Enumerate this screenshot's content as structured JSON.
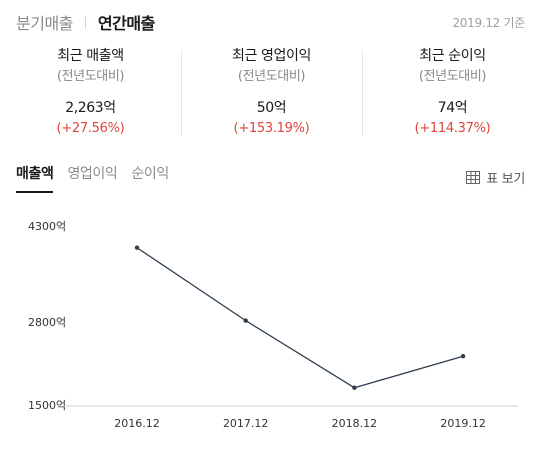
{
  "header": {
    "tabs": [
      {
        "label": "분기매출",
        "active": false
      },
      {
        "label": "연간매출",
        "active": true
      }
    ],
    "as_of": "2019.12 기준"
  },
  "metrics": [
    {
      "label": "최근 매출액",
      "sub": "(전년도대비)",
      "value": "2,263억",
      "change": "(+27.56%)"
    },
    {
      "label": "최근 영업이익",
      "sub": "(전년도대비)",
      "value": "50억",
      "change": "(+153.19%)"
    },
    {
      "label": "최근 순이익",
      "sub": "(전년도대비)",
      "value": "74억",
      "change": "(+114.37%)"
    }
  ],
  "chart_tabs": [
    {
      "label": "매출액",
      "active": true
    },
    {
      "label": "영업이익",
      "active": false
    },
    {
      "label": "순이익",
      "active": false
    }
  ],
  "table_view": {
    "label": "표 보기",
    "icon": "table-grid-icon"
  },
  "colors": {
    "accent_red": "#e0443e",
    "line": "#2f3e4e"
  },
  "chart_data": {
    "type": "line",
    "title": "",
    "xlabel": "",
    "ylabel": "",
    "categories": [
      "2016.12",
      "2017.12",
      "2018.12",
      "2019.12"
    ],
    "series": [
      {
        "values": [
          3960,
          2820,
          1770,
          2263
        ]
      }
    ],
    "y_ticks": [
      {
        "value": 4300,
        "label": "4300억"
      },
      {
        "value": 2800,
        "label": "2800억"
      },
      {
        "value": 1500,
        "label": "1500억"
      }
    ],
    "ylim": [
      1500,
      4300
    ],
    "grid": false
  }
}
